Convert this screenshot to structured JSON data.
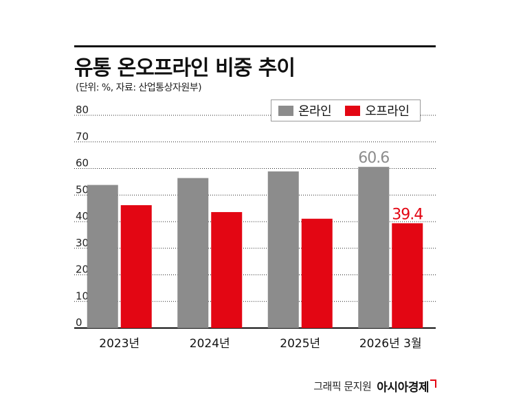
{
  "title": "유통 온오프라인 비중 추이",
  "subtitle": "(단위: %, 자료: 산업통상자원부)",
  "credit": {
    "text": "그래픽 문지원",
    "brand": "아시아경제"
  },
  "colors": {
    "online": "#8c8c8c",
    "offline": "#e30613",
    "grid": "#222222",
    "axis": "#111111"
  },
  "chart_data": {
    "type": "bar",
    "categories": [
      "2023년",
      "2024년",
      "2025년",
      "2026년 3월"
    ],
    "series": [
      {
        "name": "온라인",
        "values": [
          53.8,
          56.4,
          58.9,
          60.6
        ]
      },
      {
        "name": "오프라인",
        "values": [
          46.2,
          43.6,
          41.1,
          39.4
        ]
      }
    ],
    "data_labels": [
      {
        "series": 0,
        "index": 3,
        "text": "60.6"
      },
      {
        "series": 1,
        "index": 3,
        "text": "39.4"
      }
    ],
    "yticks": [
      "0",
      "10",
      "20",
      "30",
      "40",
      "50",
      "60",
      "70",
      "80"
    ],
    "ylim": [
      0,
      80
    ],
    "grid": "dotted horizontal",
    "legend": "top-right"
  }
}
